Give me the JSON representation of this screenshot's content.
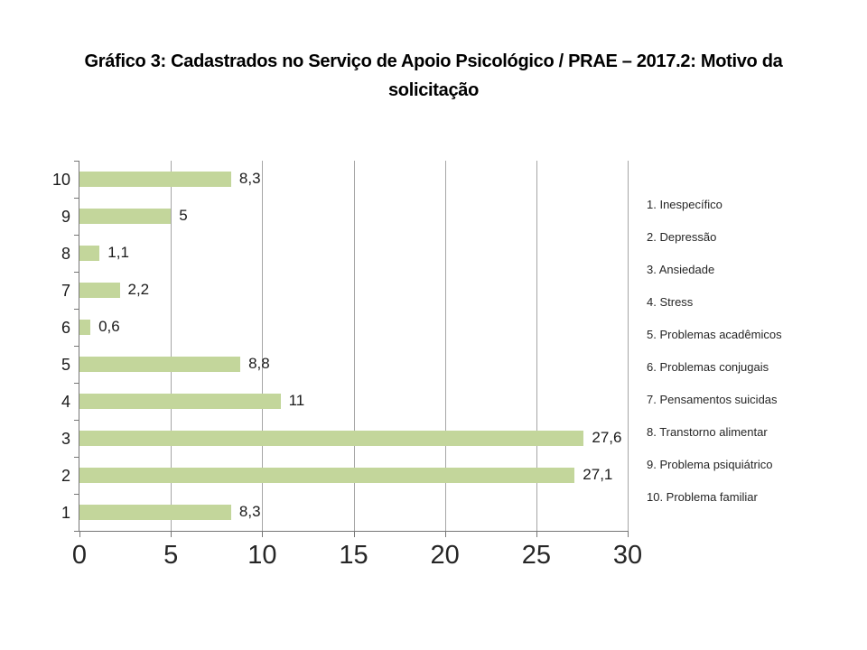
{
  "title": "Gráfico 3: Cadastrados no Serviço de Apoio Psicológico / PRAE – 2017.2: Motivo da solicitação",
  "chart_data": {
    "type": "bar",
    "orientation": "horizontal",
    "title": "Gráfico 3: Cadastrados no Serviço de Apoio Psicológico / PRAE – 2017.2: Motivo da solicitação",
    "categories": [
      "1",
      "2",
      "3",
      "4",
      "5",
      "6",
      "7",
      "8",
      "9",
      "10"
    ],
    "values": [
      8.3,
      27.1,
      27.6,
      11,
      8.8,
      0.6,
      2.2,
      1.1,
      5,
      8.3
    ],
    "value_labels": [
      "8,3",
      "27,1",
      "27,6",
      "11",
      "8,8",
      "0,6",
      "2,2",
      "1,1",
      "5",
      "8,3"
    ],
    "category_order": "1 at bottom, 10 at top",
    "x_ticks": [
      0,
      5,
      10,
      15,
      20,
      25,
      30
    ],
    "x_tick_labels": [
      "0",
      "5",
      "10",
      "15",
      "20",
      "25",
      "30"
    ],
    "xlim": [
      0,
      30
    ],
    "grid": true,
    "legend_position": "right",
    "legend_items": [
      "1. Inespecífico",
      "2. Depressão",
      "3. Ansiedade",
      "4. Stress",
      "5. Problemas acadêmicos",
      "6. Problemas conjugais",
      "7. Pensamentos suicidas",
      "8. Transtorno alimentar",
      "9. Problema psiquiátrico",
      "10. Problema familiar"
    ]
  },
  "colors": {
    "bar": "#c3d69b",
    "axis": "#767676",
    "gridline": "#a6a6a6",
    "text": "#262626",
    "background": "#ffffff"
  }
}
